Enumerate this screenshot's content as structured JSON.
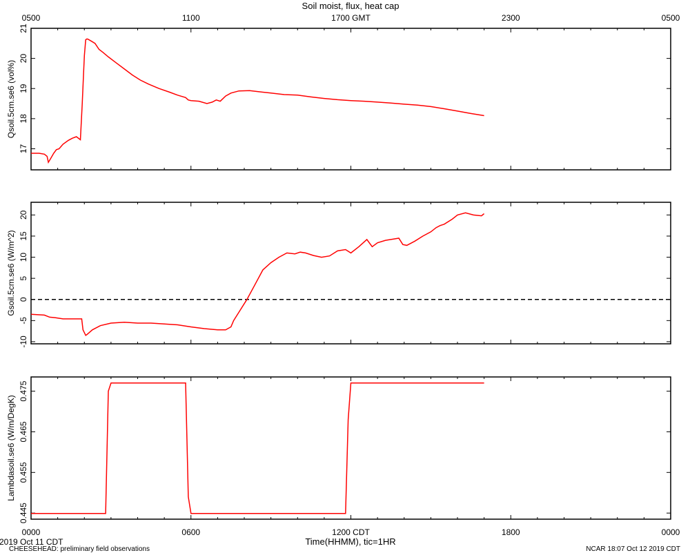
{
  "title": "Soil moist, flux, heat cap",
  "top_axis": {
    "ticks": [
      "0500",
      "1100",
      "1700 GMT",
      "2300",
      "0500"
    ]
  },
  "bottom_axis": {
    "ticks": [
      "0000",
      "0600",
      "1200 CDT",
      "1800",
      "0000"
    ],
    "label": "Time(HHMM), tic=1HR",
    "date_label": "2019 Oct 11 CDT"
  },
  "footer": {
    "left": "CHEESEHEAD: preliminary field observations",
    "right": "NCAR 18:07 Oct 12 2019 CDT"
  },
  "colors": {
    "series": "#ff0000",
    "axis": "#000000",
    "zero_line": "#000000"
  },
  "chart_data": [
    {
      "type": "line",
      "ylabel": "Qsoil.5cm.se6 (vol%)",
      "xlim": [
        0,
        24
      ],
      "ylim": [
        16.3,
        21
      ],
      "yticks": [
        17,
        18,
        19,
        20,
        21
      ],
      "series": [
        {
          "x": [
            0,
            0.3,
            0.5,
            0.6,
            0.65,
            0.75,
            0.85,
            0.95,
            1.05,
            1.2,
            1.4,
            1.55,
            1.7,
            1.85,
            1.92,
            1.97,
            2.0,
            2.05,
            2.1,
            2.15,
            2.25,
            2.4,
            2.55,
            2.7,
            2.9,
            3.2,
            3.5,
            3.8,
            4.1,
            4.4,
            4.8,
            5.2,
            5.5,
            5.8,
            5.9,
            6.0,
            6.3,
            6.6,
            6.8,
            6.95,
            7.1,
            7.3,
            7.5,
            7.8,
            8.2,
            8.5,
            9.0,
            9.5,
            10.0,
            10.5,
            11.0,
            11.5,
            12.0,
            12.5,
            13.0,
            13.5,
            14.0,
            14.5,
            15.0,
            15.5,
            16.0,
            16.5,
            17.0
          ],
          "values": [
            16.85,
            16.85,
            16.82,
            16.75,
            16.55,
            16.7,
            16.85,
            16.97,
            17.0,
            17.15,
            17.28,
            17.35,
            17.4,
            17.3,
            18.5,
            19.5,
            20.1,
            20.62,
            20.65,
            20.63,
            20.58,
            20.5,
            20.3,
            20.2,
            20.05,
            19.85,
            19.65,
            19.45,
            19.28,
            19.15,
            19.0,
            18.88,
            18.78,
            18.7,
            18.62,
            18.6,
            18.58,
            18.5,
            18.55,
            18.62,
            18.58,
            18.75,
            18.85,
            18.92,
            18.93,
            18.9,
            18.85,
            18.8,
            18.78,
            18.72,
            18.67,
            18.63,
            18.6,
            18.58,
            18.55,
            18.52,
            18.48,
            18.45,
            18.4,
            18.33,
            18.25,
            18.17,
            18.1
          ]
        }
      ]
    },
    {
      "type": "line",
      "ylabel": "Gsoil.5cm.se6 (W/m^2)",
      "xlim": [
        0,
        24
      ],
      "ylim": [
        -10.5,
        23
      ],
      "yticks": [
        -10,
        -5,
        0,
        5,
        10,
        15,
        20
      ],
      "reference_line": 0,
      "series": [
        {
          "x": [
            0,
            0.5,
            0.7,
            0.9,
            1.2,
            1.6,
            1.9,
            1.95,
            2.05,
            2.1,
            2.3,
            2.6,
            3.0,
            3.5,
            4.0,
            4.5,
            5.0,
            5.5,
            6.0,
            6.5,
            7.0,
            7.3,
            7.5,
            7.6,
            7.8,
            8.1,
            8.4,
            8.7,
            9.0,
            9.3,
            9.6,
            9.9,
            10.1,
            10.3,
            10.6,
            10.9,
            11.2,
            11.5,
            11.8,
            12.0,
            12.3,
            12.6,
            12.8,
            13.0,
            13.3,
            13.6,
            13.8,
            13.95,
            14.1,
            14.4,
            14.7,
            15.0,
            15.2,
            15.35,
            15.5,
            15.8,
            16.0,
            16.3,
            16.6,
            16.9,
            17.0
          ],
          "values": [
            -3.5,
            -3.7,
            -4.2,
            -4.3,
            -4.6,
            -4.6,
            -4.6,
            -7.2,
            -8.5,
            -8.3,
            -7.2,
            -6.2,
            -5.6,
            -5.4,
            -5.6,
            -5.6,
            -5.8,
            -6.0,
            -6.5,
            -6.9,
            -7.2,
            -7.2,
            -6.5,
            -5.0,
            -3.0,
            0.0,
            3.5,
            7.0,
            8.7,
            10.0,
            11.0,
            10.8,
            11.2,
            11.0,
            10.4,
            10.0,
            10.3,
            11.5,
            11.8,
            11.0,
            12.5,
            14.2,
            12.5,
            13.4,
            14.0,
            14.3,
            14.5,
            13.0,
            12.8,
            13.8,
            15.0,
            16.0,
            17.0,
            17.5,
            17.8,
            19.0,
            20.0,
            20.5,
            20.0,
            19.8,
            20.3
          ]
        }
      ]
    },
    {
      "type": "line",
      "ylabel": "Lambdasoil.se6 (W/m/DegK)",
      "xlim": [
        0,
        24
      ],
      "ylim": [
        0.4435,
        0.4785
      ],
      "yticks": [
        0.445,
        0.455,
        0.465,
        0.475
      ],
      "series": [
        {
          "x": [
            0,
            2.8,
            2.9,
            3.0,
            5.8,
            5.9,
            6.0,
            11.8,
            11.9,
            12.0,
            17.0
          ],
          "values": [
            0.4449,
            0.4449,
            0.475,
            0.477,
            0.477,
            0.449,
            0.4449,
            0.4449,
            0.468,
            0.477,
            0.477
          ]
        }
      ]
    }
  ]
}
